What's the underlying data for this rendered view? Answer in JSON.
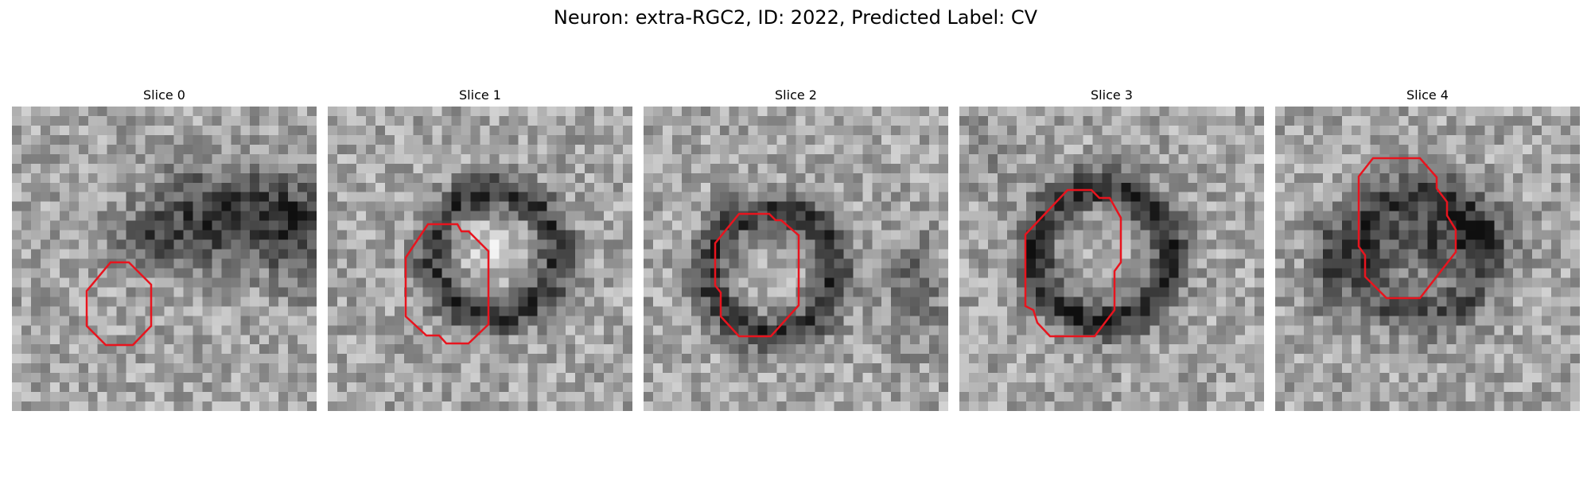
{
  "figure": {
    "title": "Neuron: extra-RGC2, ID: 2022, Predicted Label: CV"
  },
  "slices": [
    {
      "title": "Slice 0"
    },
    {
      "title": "Slice 1"
    },
    {
      "title": "Slice 2"
    },
    {
      "title": "Slice 3"
    },
    {
      "title": "Slice 4"
    }
  ],
  "style": {
    "contour_color": "#e8141e",
    "colormap": "gray"
  }
}
